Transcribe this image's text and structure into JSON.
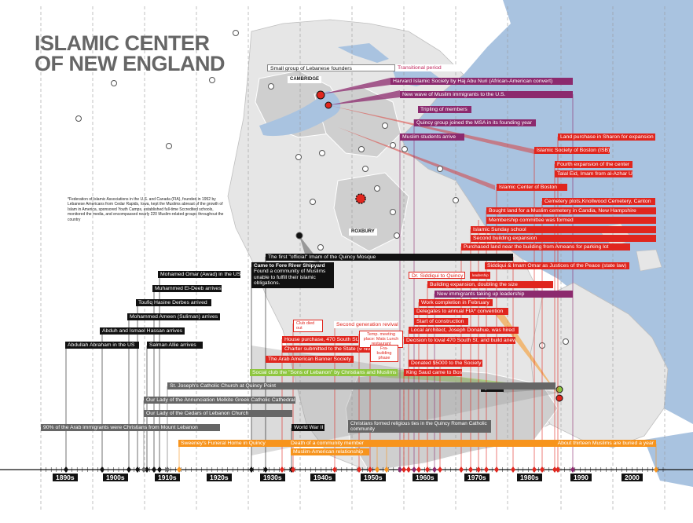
{
  "title": {
    "line1": "ISLAMIC CENTER",
    "line2": "OF NEW ENGLAND"
  },
  "footnote": "*Federation of Islamic Associations in the U.S. and Canada (FIA), founded in 1952 by Lebanese Americans from Cedar Rapids, Iowa, kept the Muslims abreast of the growth of Islam in America, sponsored Youth Camps, established full-time Sccredited schools, monitored the media, and encompassed nearly 220 Muslim-related groups throughout the country",
  "places": {
    "cambridge": "CAMBRIDGE",
    "roxbury": "ROXBURY",
    "quincy": "QUINCY"
  },
  "header_labels": {
    "lebanese_founders": "Small group of Lebanese founders",
    "transitional": "Transitional period"
  },
  "purple_events": [
    "Harvard Islamic Society by Haj Abu Nuri (African-American convert)",
    "New wave of Muslim immigrants to the U.S.",
    "Tripling of members",
    "Quincy group joined the MSA in its founding year",
    "Muslim students arrive",
    "New immigrants taking up leadership"
  ],
  "red_events": {
    "isb": "Islamic Society of Boston (ISB)",
    "sharon": "Land purchase in Sharon for expansion",
    "fourth": "Fourth expansion of the center",
    "talal": "Talal Eid, Imam from al-Azhar University",
    "icb": "Islamic Center of Boston",
    "cemetery": "Cemetery plots,Knollwood Cemetery, Canton",
    "candia": "Bought land for a Muslim cemetery in Candia, New Hampshire",
    "membership": "Membership committee was formed",
    "sunday": "Islamic Sunday school",
    "second_exp": "Second building expansion",
    "parking": "Purchased land near the building from Ameans for parking lot",
    "siddiqui_imam": "Siddiqui & Imam Omar as Justices of the Peace (state law)",
    "siddiqui_quincy": "Dr. Siddiqui to Quincy",
    "siddiqui_tag": "leadership",
    "building_exp": "Building expansion, doubling the size",
    "work_completion": "Work completion in February",
    "delegates": "Delegates to annual FIA* convention",
    "start_construction": "Start of construction",
    "architect": "Local architect, Joseph Donahue, was hired",
    "decision": "Decision to loval 470 South St. and build anew",
    "donated": "Donated $5000 to the Society",
    "king_saud": "King Saud came to Boston",
    "club_died": "Club died out",
    "second_gen": "Second generation revival",
    "house_purchase": "House purchase, 470 South St.",
    "charter": "Charter submitted to the State (9 Nov.)",
    "temp_meeting": "Temp. meeting place: Mats Lunch restaurant",
    "fundraising": "Fra-building phase",
    "arab_banner": "The Arab American Banner Society"
  },
  "black_events": {
    "first_imam": "The first \"official\" Imam of the Quincy Mosque",
    "fore_river_title": "Came to Fore River Shipyard",
    "fore_river_body": "Found a community of Muslims unable to fulfill their islamic obligations.",
    "mohamed_omar": "Mohamed Omar (Awad) in the US",
    "muhammed_eldeeb": "Muhammed El-Deeb arrives",
    "toufiq": "Toufiq Hasine Derbes arrived",
    "mohammed_ameen": "Mohammed Ameen (Suliman) arrives",
    "abduh": "Abduh and Ismael Hassan arrives",
    "abdullah": "Abdullah Abraham in the US",
    "salman": "Salman Allie arrives",
    "ww2": "World War II"
  },
  "gray_events": {
    "st_joseph": "St. Joseph's Catholic Church at Quincy Point",
    "annunciation": "Our Lady of the Annunciation Melkite Greek Catholic Cathedral",
    "cedars": "Our Lady of the Cedars of Lebanon Church",
    "ninety_percent": "90% of the Arab immigrants were Christians from Mount Lebanon",
    "christians_ties": "Christians formed religious ties in the Quincy Roman Catholic community"
  },
  "green_events": {
    "social_club": "Social club the \"Sons of Lebanon\" by Christians and Muslims"
  },
  "orange_events": {
    "sweeney": "Sweeney's Funeral Home in Quincy",
    "death": "Death of a community member",
    "relationship": "Muslim-American relationship",
    "thirteen": "About thirteen Muslims are buried a year"
  },
  "decades": [
    "1890s",
    "1900s",
    "1910s",
    "1920s",
    "1930s",
    "1940s",
    "1950s",
    "1960s",
    "1970s",
    "1980s",
    "1990",
    "2000"
  ],
  "colors": {
    "water": "#a9c3e0",
    "land": "#e6e6e6",
    "district": "#cfcfcf",
    "purple": "#8c2a6e",
    "red": "#e0261e",
    "green": "#8ec63f",
    "orange": "#f7941d",
    "gray_bar": "#666666",
    "black_bar": "#111111",
    "title": "#666666"
  }
}
